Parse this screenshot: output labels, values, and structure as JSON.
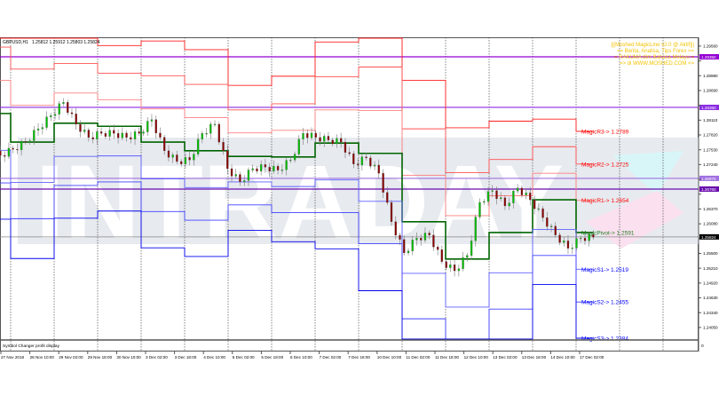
{
  "header": {
    "symbol": "GBPUSD,H1",
    "ohlc": "1.25812 1.25912 1.25803 1.25824"
  },
  "annotation": [
    "||[Moshed MagicLine v2.0 @ Aktif]||",
    "== Berita, Analisa, Tips Forex ==",
    "= RAKUMA dlm Bahasa Melayu =",
    "=> di WWW.MOSHED.COM <="
  ],
  "watermark": "INTRADAY",
  "subwindow_label": "Symbol Changer profit display",
  "subwindow_scale": "0",
  "colors": {
    "pivot": "#006400",
    "resistance": "#ff0000",
    "support": "#0000ff",
    "hline": "#8a2be2",
    "annotation": "#f2c200",
    "bull": "#00c000",
    "bear": "#8b0000"
  },
  "chart_data": {
    "type": "line",
    "ylim": [
      1.2366,
      1.297
    ],
    "y_ticks": [
      "1.29560",
      "1.29270",
      "1.28980",
      "1.28690",
      "1.28400",
      "1.28110",
      "1.27820",
      "1.27530",
      "1.27240",
      "1.26950",
      "1.26660",
      "1.26370",
      "1.26080",
      "1.25790",
      "1.25500",
      "1.25210",
      "1.24920",
      "1.24630",
      "1.24340",
      "1.24050",
      "1.23760"
    ],
    "x_ticks": [
      "27 Nov 2018",
      "28 Nov 10:00",
      "29 Nov 02:00",
      "29 Nov 18:00",
      "30 Nov 10:00",
      "3 Dec 02:00",
      "3 Dec 18:00",
      "4 Dec 10:00",
      "5 Dec 02:00",
      "5 Dec 18:00",
      "6 Dec 10:00",
      "7 Dec 02:00",
      "7 Dec 18:00",
      "10 Dec 10:00",
      "11 Dec 02:00",
      "11 Dec 18:00",
      "12 Dec 10:00",
      "13 Dec 02:00",
      "13 Dec 18:00",
      "14 Dec 10:00",
      "17 Dec 02:00"
    ],
    "price_close_approx": [
      1.2742,
      1.2754,
      1.2768,
      1.2794,
      1.282,
      1.2846,
      1.2803,
      1.2777,
      1.2785,
      1.2785,
      1.2777,
      1.2785,
      1.2812,
      1.2751,
      1.273,
      1.2733,
      1.2785,
      1.2803,
      1.2716,
      1.269,
      1.2716,
      1.2719,
      1.2713,
      1.2733,
      1.2785,
      1.2777,
      1.2772,
      1.2768,
      1.2725,
      1.2737,
      1.2707,
      1.2612,
      1.2551,
      1.258,
      1.2586,
      1.2534,
      1.2516,
      1.2546,
      1.265,
      1.2673,
      1.2643,
      1.2678,
      1.2655,
      1.262,
      1.2586,
      1.256,
      1.258,
      1.2582
    ],
    "magic_levels": {
      "pivot": [
        1.2824,
        1.2768,
        1.2805,
        1.2799,
        1.2768,
        1.2751,
        1.274,
        1.2739,
        1.2766,
        1.2746,
        1.2612,
        1.2539,
        1.2591,
        1.2655,
        1.2591
      ],
      "r1": [
        1.2889,
        1.284,
        1.2864,
        1.2851,
        1.2833,
        1.2816,
        1.2786,
        1.2791,
        1.2831,
        1.283,
        1.2703,
        1.2624,
        1.2663,
        1.2707,
        1.2654
      ],
      "r2": [
        1.2954,
        1.2911,
        1.2922,
        1.2903,
        1.2898,
        1.2881,
        1.2831,
        1.2843,
        1.2896,
        1.2915,
        1.2794,
        1.2708,
        1.2734,
        1.2759,
        1.2725
      ],
      "r3": [
        1.3022,
        1.2986,
        1.2983,
        1.2957,
        1.2966,
        1.2949,
        1.2879,
        1.2897,
        1.2964,
        1.3003,
        1.2889,
        1.2796,
        1.2809,
        1.2813,
        1.2789
      ],
      "s1": [
        1.2752,
        1.2689,
        1.274,
        1.2741,
        1.2696,
        1.2679,
        1.269,
        1.2681,
        1.2694,
        1.2652,
        1.2511,
        1.2445,
        1.2512,
        1.2597,
        1.2519
      ],
      "s2": [
        1.2688,
        1.2618,
        1.2683,
        1.269,
        1.2632,
        1.2615,
        1.2645,
        1.263,
        1.263,
        1.2569,
        1.2422,
        1.2362,
        1.2441,
        1.2546,
        1.2455
      ],
      "s3": [
        1.2617,
        1.254,
        1.2619,
        1.2633,
        1.2561,
        1.2544,
        1.2595,
        1.2573,
        1.2559,
        1.2477,
        1.2322,
        1.227,
        1.2363,
        1.2489,
        1.2384
      ]
    },
    "level_labels": {
      "r3": "MagicR3-> 1.2789",
      "r2": "MagicR2-> 1.2725",
      "r1": "MagicR1-> 1.2654",
      "pivot": "MagicPivot-> 1.2591",
      "s1": "MagicS1-> 1.2519",
      "s2": "MagicS2-> 1.2455",
      "s3": "MagicS3-> 1.2384"
    },
    "horizontal_lines": [
      {
        "price": 1.2935,
        "label": "1.29350",
        "color": "#9400d3"
      },
      {
        "price": 1.2836,
        "label": "1.28360",
        "color": "#8a2be2"
      },
      {
        "price": 1.2697,
        "label": "1.26970",
        "color": "#a070e0"
      },
      {
        "price": 1.2676,
        "label": "1.26760",
        "color": "#6a0dad"
      }
    ],
    "current_price": {
      "price": 1.25824,
      "label": "1.25824"
    }
  }
}
